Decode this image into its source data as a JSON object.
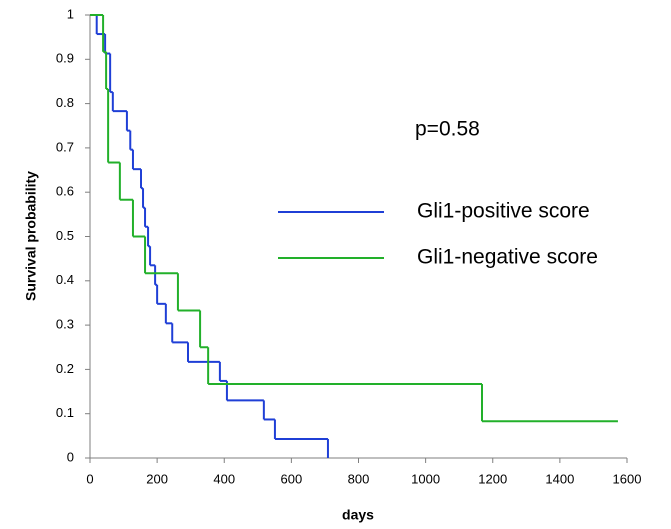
{
  "chart_data": {
    "type": "step",
    "annotation": "p=0.58",
    "xlabel": "days",
    "ylabel": "Survival probability",
    "xlim": [
      0,
      1600
    ],
    "xticks": [
      0,
      200,
      400,
      600,
      800,
      1000,
      1200,
      1400,
      1600
    ],
    "ylim": [
      0,
      1
    ],
    "yticks": [
      0,
      0.1,
      0.2,
      0.3,
      0.4,
      0.5,
      0.6,
      0.7,
      0.8,
      0.9,
      1
    ],
    "grid": false,
    "legend": "right",
    "series": [
      {
        "name": "Gli1-positive score",
        "color": "#1f3fd6",
        "x": [
          0,
          20,
          45,
          60,
          68,
          110,
          120,
          128,
          152,
          158,
          164,
          173,
          179,
          194,
          200,
          226,
          245,
          292,
          387,
          408,
          518,
          551,
          709
        ],
        "values": [
          1,
          0.957,
          0.913,
          0.826,
          0.783,
          0.739,
          0.696,
          0.652,
          0.609,
          0.565,
          0.522,
          0.478,
          0.435,
          0.391,
          0.348,
          0.304,
          0.261,
          0.217,
          0.174,
          0.13,
          0.087,
          0.043,
          0
        ]
      },
      {
        "name": "Gli1-negative score",
        "color": "#22b02a",
        "x": [
          0,
          39,
          48,
          54,
          89,
          128,
          164,
          262,
          328,
          352,
          1168,
          1573
        ],
        "values": [
          1,
          0.917,
          0.833,
          0.667,
          0.583,
          0.5,
          0.417,
          0.333,
          0.25,
          0.167,
          0.083,
          0.083
        ]
      }
    ]
  }
}
